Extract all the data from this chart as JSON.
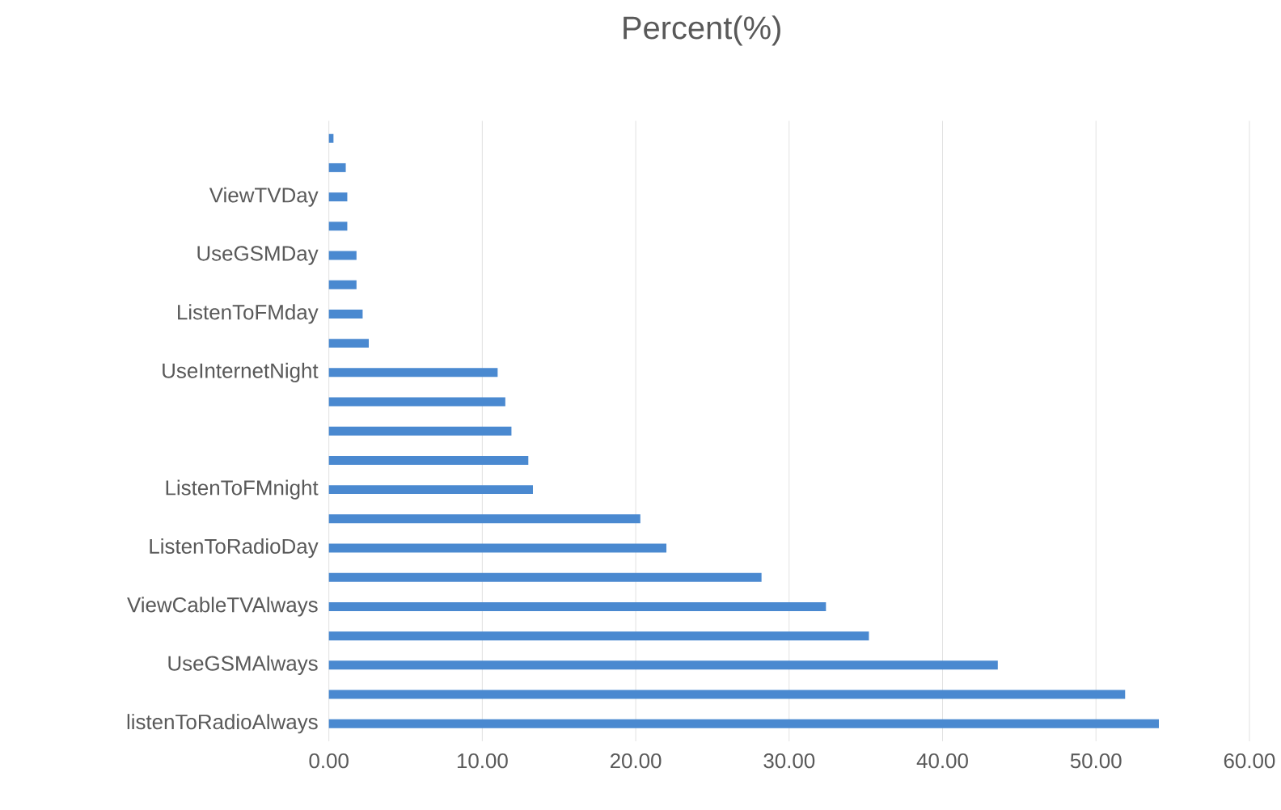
{
  "chart_data": {
    "type": "bar",
    "orientation": "horizontal",
    "title": "Percent(%)",
    "categories": [
      null,
      null,
      "ViewTVDay",
      null,
      "UseGSMDay",
      null,
      "ListenToFMday",
      null,
      "UseInternetNight",
      null,
      null,
      null,
      "ListenToFMnight",
      null,
      "ListenToRadioDay",
      null,
      "ViewCableTVAlways",
      null,
      "UseGSMAlways",
      null,
      "listenToRadioAlways"
    ],
    "values": [
      0.3,
      1.1,
      1.2,
      1.2,
      1.8,
      1.8,
      2.2,
      2.6,
      11.0,
      11.5,
      11.9,
      13.0,
      13.3,
      20.3,
      22.0,
      28.2,
      32.4,
      35.2,
      43.6,
      51.9,
      54.1
    ],
    "color": "#4a89d0",
    "xlim": [
      0,
      60
    ],
    "xticks": [
      {
        "value": 0,
        "label": "0.00"
      },
      {
        "value": 10,
        "label": "10.00"
      },
      {
        "value": 20,
        "label": "20.00"
      },
      {
        "value": 30,
        "label": "30.00"
      },
      {
        "value": 40,
        "label": "40.00"
      },
      {
        "value": 50,
        "label": "50.00"
      },
      {
        "value": 60,
        "label": "60.00"
      }
    ],
    "grid": "x"
  }
}
